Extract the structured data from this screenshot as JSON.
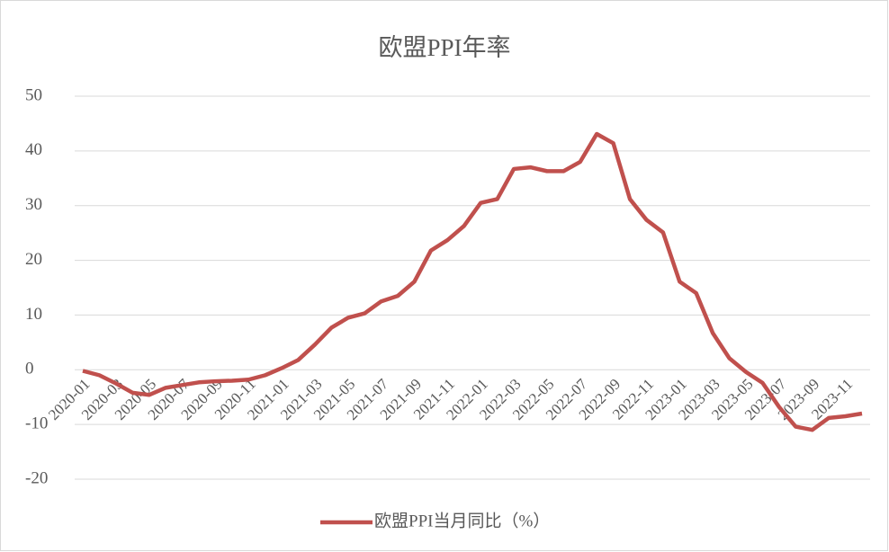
{
  "chart_data": {
    "type": "line",
    "title": "欧盟PPI年率",
    "categories": [
      "2020-01",
      null,
      "2020-03",
      null,
      "2020-05",
      null,
      "2020-07",
      null,
      "2020-09",
      null,
      "2020-11",
      null,
      "2021-01",
      null,
      "2021-03",
      null,
      "2021-05",
      null,
      "2021-07",
      null,
      "2021-09",
      null,
      "2021-11",
      null,
      "2022-01",
      null,
      "2022-03",
      null,
      "2022-05",
      null,
      "2022-07",
      null,
      "2022-09",
      null,
      "2022-11",
      null,
      "2023-01",
      null,
      "2023-03",
      null,
      "2023-05",
      null,
      "2023-07",
      null,
      "2023-09",
      null,
      "2023-11",
      null
    ],
    "series": [
      {
        "name": "欧盟PPI当月同比（%）",
        "color": "#c0504d",
        "values": [
          -0.2,
          -1.0,
          -2.5,
          -4.2,
          -4.6,
          -3.3,
          -2.8,
          -2.3,
          -2.1,
          -2.0,
          -1.8,
          -1.0,
          0.3,
          1.8,
          4.6,
          7.7,
          9.5,
          10.3,
          12.5,
          13.5,
          16.1,
          21.8,
          23.7,
          26.3,
          30.5,
          31.2,
          36.7,
          37.0,
          36.3,
          36.3,
          38.0,
          43.1,
          41.4,
          31.2,
          27.4,
          25.1,
          16.1,
          14.0,
          6.7,
          2.1,
          -0.4,
          -2.4,
          -6.8,
          -10.4,
          -11.0,
          -8.8,
          -8.5,
          -8.0
        ]
      }
    ],
    "ylim": [
      -20,
      50
    ],
    "yticks": [
      -20,
      -10,
      0,
      10,
      20,
      30,
      40,
      50
    ],
    "grid": true,
    "legend": "bottom"
  }
}
